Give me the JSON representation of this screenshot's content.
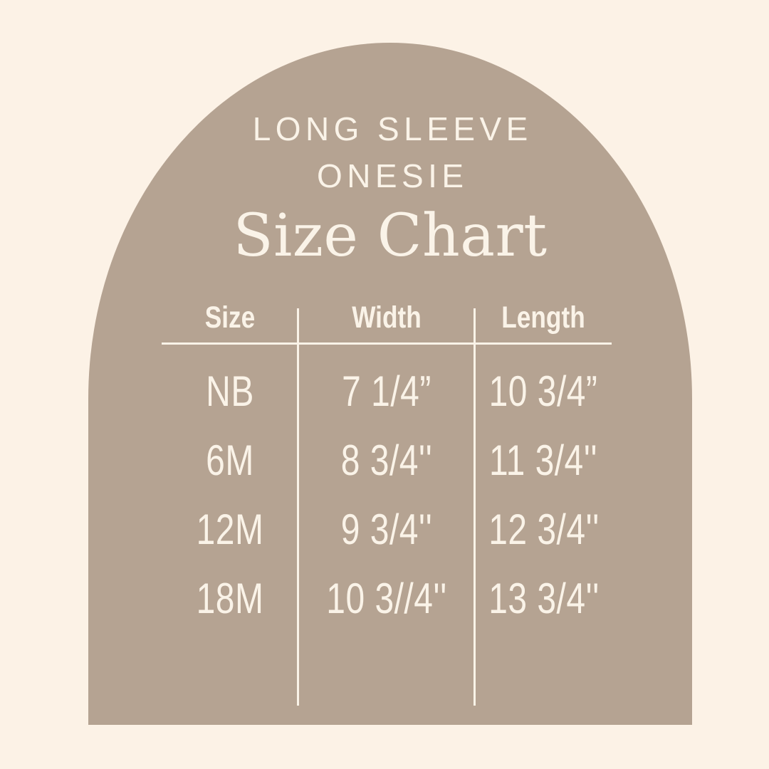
{
  "colors": {
    "background": "#FCF2E6",
    "arch": "#B5A392",
    "text": "#FAF3E8"
  },
  "title": {
    "eyebrow_line1": "LONG SLEEVE",
    "eyebrow_line2": "ONESIE",
    "main": "Size Chart"
  },
  "chart_data": {
    "type": "table",
    "title": "LONG SLEEVE ONESIE Size Chart",
    "columns": [
      "Size",
      "Width",
      "Length"
    ],
    "rows": [
      [
        "NB",
        "7 1/4”",
        "10 3/4”"
      ],
      [
        "6M",
        "8 3/4''",
        "11 3/4''"
      ],
      [
        "12M",
        "9 3/4''",
        "12 3/4''"
      ],
      [
        "18M",
        "10 3//4''",
        "13 3/4''"
      ]
    ]
  }
}
